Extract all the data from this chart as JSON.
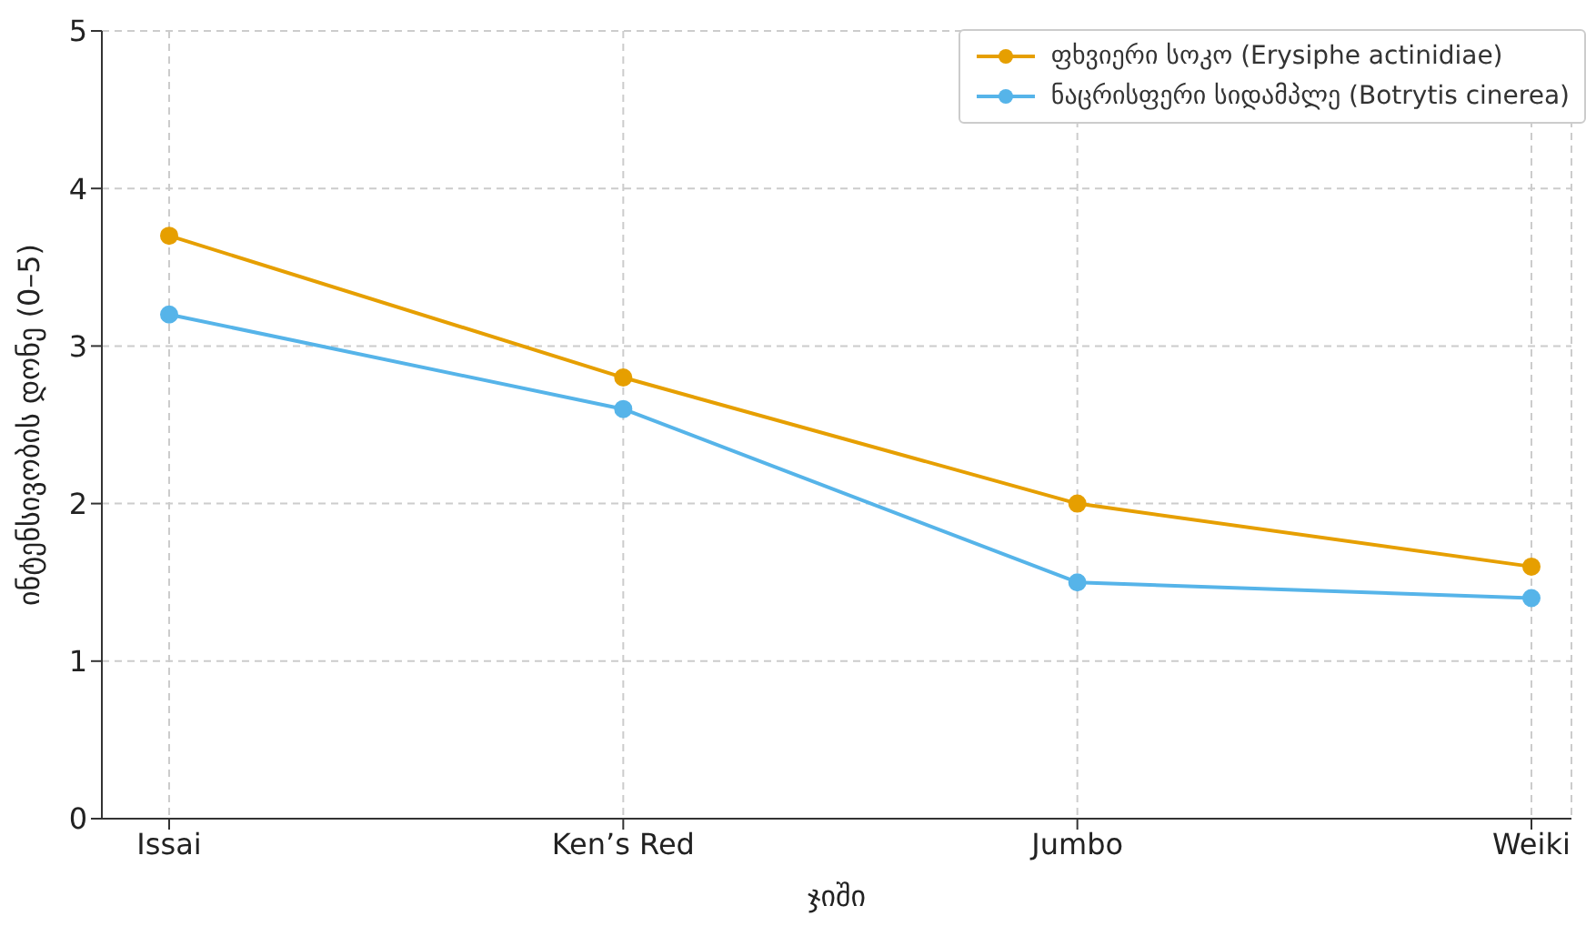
{
  "chart_data": {
    "type": "line",
    "xlabel": "ჯიში",
    "ylabel": "ინტენსივობის დონე (0–5)",
    "categories": [
      "Issai",
      "Ken’s Red",
      "Jumbo",
      "Weiki"
    ],
    "series": [
      {
        "name": "ფხვიერი სოკო (Erysiphe actinidiae)",
        "color": "#e69f00",
        "values": [
          3.7,
          2.8,
          2.0,
          1.6
        ]
      },
      {
        "name": "ნაცრისფერი სიდამპლე (Botrytis cinerea)",
        "color": "#56b4e9",
        "values": [
          3.2,
          2.6,
          1.5,
          1.4
        ]
      }
    ],
    "ylim": [
      0,
      5
    ],
    "yticks": [
      0,
      1,
      2,
      3,
      4,
      5
    ],
    "grid": true,
    "legend": "top right",
    "marker": "circle",
    "line_style": "solid"
  }
}
